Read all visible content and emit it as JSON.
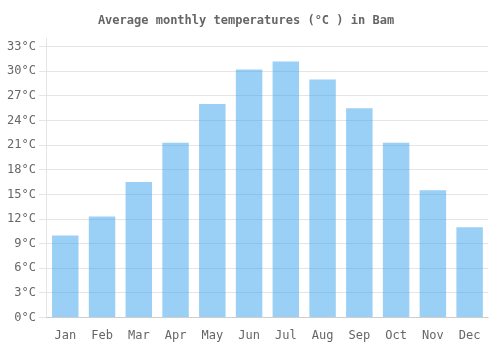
{
  "chart_data": {
    "type": "bar",
    "title": "Average monthly temperatures (°C ) in Bam",
    "categories": [
      "Jan",
      "Feb",
      "Mar",
      "Apr",
      "May",
      "Jun",
      "Jul",
      "Aug",
      "Sep",
      "Oct",
      "Nov",
      "Dec"
    ],
    "values": [
      10.0,
      12.3,
      16.5,
      21.3,
      26.0,
      30.2,
      31.2,
      29.0,
      25.5,
      21.3,
      15.5,
      11.0
    ],
    "ylim": [
      0,
      34
    ],
    "yticks": [
      {
        "value": 0,
        "label": "0°C"
      },
      {
        "value": 3,
        "label": "3°C"
      },
      {
        "value": 6,
        "label": "6°C"
      },
      {
        "value": 9,
        "label": "9°C"
      },
      {
        "value": 12,
        "label": "12°C"
      },
      {
        "value": 15,
        "label": "15°C"
      },
      {
        "value": 18,
        "label": "18°C"
      },
      {
        "value": 21,
        "label": "21°C"
      },
      {
        "value": 24,
        "label": "24°C"
      },
      {
        "value": 27,
        "label": "27°C"
      },
      {
        "value": 30,
        "label": "30°C"
      },
      {
        "value": 33,
        "label": "33°C"
      }
    ],
    "grid": true
  }
}
